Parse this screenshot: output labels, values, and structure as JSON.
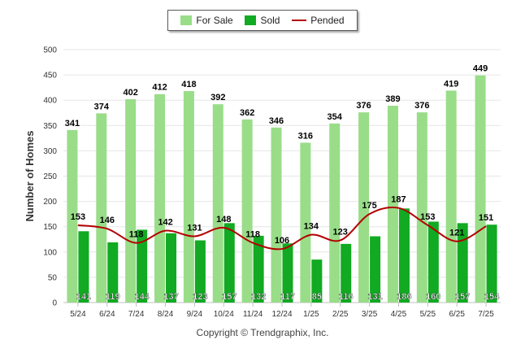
{
  "legend": {
    "for_sale": "For Sale",
    "sold": "Sold",
    "pended": "Pended"
  },
  "copyright": "Copyright © Trendgraphix, Inc.",
  "chart_data": {
    "type": "bar",
    "ylabel": "Number of Homes",
    "ylim": [
      0,
      500
    ],
    "yticks": [
      0,
      50,
      100,
      150,
      200,
      250,
      300,
      350,
      400,
      450,
      500
    ],
    "categories": [
      "5/24",
      "6/24",
      "7/24",
      "8/24",
      "9/24",
      "10/24",
      "11/24",
      "12/24",
      "1/25",
      "2/25",
      "3/25",
      "4/25",
      "5/25",
      "6/25",
      "7/25"
    ],
    "series": [
      {
        "name": "For Sale",
        "type": "bar",
        "color": "#99dd88",
        "values": [
          341,
          374,
          402,
          412,
          418,
          392,
          362,
          346,
          316,
          354,
          376,
          389,
          376,
          419,
          449
        ]
      },
      {
        "name": "Sold",
        "type": "bar",
        "color": "#11aa22",
        "values": [
          141,
          119,
          144,
          137,
          123,
          157,
          132,
          117,
          85,
          116,
          131,
          186,
          160,
          157,
          154
        ]
      },
      {
        "name": "Pended",
        "type": "line",
        "color": "#b40000",
        "values": [
          153,
          146,
          118,
          142,
          131,
          148,
          118,
          106,
          134,
          123,
          175,
          187,
          153,
          121,
          151
        ]
      }
    ],
    "grid": true,
    "legend_position": "top-center"
  }
}
